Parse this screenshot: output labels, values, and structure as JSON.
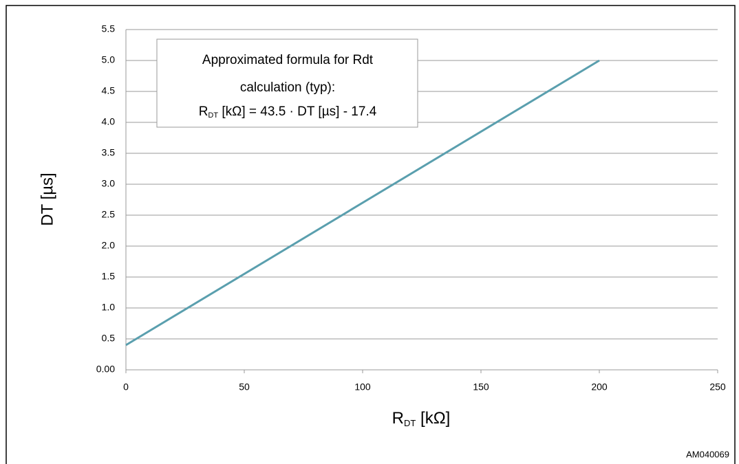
{
  "chart_data": {
    "type": "line",
    "x": [
      0,
      200
    ],
    "series": [
      {
        "color": "#5a9fae",
        "values": [
          0.4,
          5.0
        ]
      }
    ],
    "xlim": [
      0,
      250
    ],
    "xticks": [
      0,
      50,
      100,
      150,
      200,
      250
    ],
    "ylim": [
      0,
      5.5
    ],
    "yticks": [
      {
        "value": 0,
        "label": "0.00"
      },
      0.5,
      {
        "value": 1,
        "label": "1.0"
      },
      1.5,
      {
        "value": 2,
        "label": "2.0"
      },
      2.5,
      {
        "value": 3,
        "label": "3.0"
      },
      3.5,
      {
        "value": 4,
        "label": "4.0"
      },
      4.5,
      {
        "value": 5,
        "label": "5.0"
      },
      5.5
    ],
    "grid": true,
    "y_label": "DT [µs]",
    "x_label": {
      "main": "R",
      "sub": "DT",
      "rest": " [kΩ]"
    },
    "annotation": {
      "lines": [
        "Approximated formula for Rdt",
        "calculation (typ):"
      ],
      "formula": {
        "main": "R",
        "sub": "DT",
        "rest": " [kΩ] = 43.5 · DT [µs] - 17.4"
      }
    },
    "figure_id": "AM040069"
  }
}
